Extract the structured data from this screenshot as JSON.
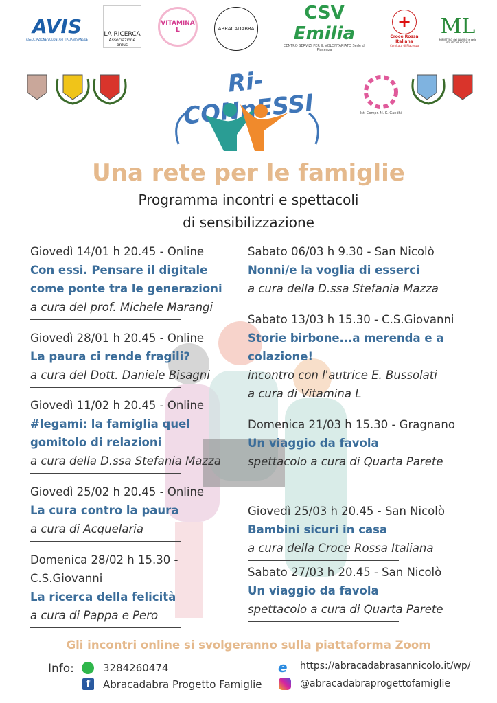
{
  "logos": {
    "avis": "AVIS",
    "avis_sub": "ASSOCIAZIONE VOLONTARI ITALIANI SANGUE",
    "ricerca": "LA RICERCA",
    "ricerca_sub": "Associazione onlus",
    "vitamina": "VITAMINA L",
    "abracadabra": "ABRACADABRA",
    "csv": "CSV",
    "csv_emilia": "Emilia",
    "csv_sub": "CENTRO SERVIZI PER IL VOLONTARIATO",
    "csv_sede": "Sede di Piacenza",
    "cri": "Croce Rossa Italiana",
    "cri_sub": "Comitato di Piacenza",
    "ministero": "ML",
    "ministero_sub": "MINISTERO del LAVORO e delle POLITICHE SOCIALI",
    "gandhi": "Ist. Compr. M. K. Gandhi",
    "project": "Ri-CONnESSI"
  },
  "header": {
    "title": "Una rete per le famiglie",
    "subtitle_1": "Programma incontri e spettacoli",
    "subtitle_2": "di sensibilizzazione"
  },
  "colors": {
    "title": "#e5b98c",
    "event_title": "#3b6d9a",
    "teal": "#2a9d94",
    "orange": "#f08a2c"
  },
  "left_events": [
    {
      "lines": [
        [
          "when",
          "Giovedì 14/01 h 20.45 - Online"
        ],
        [
          "title",
          "Con essi. Pensare il digitale"
        ],
        [
          "title",
          "come ponte tra le generazioni"
        ],
        [
          "who",
          "a cura del prof. Michele Marangi"
        ]
      ]
    },
    {
      "lines": [
        [
          "when",
          "Giovedì 28/01 h 20.45 - Online"
        ],
        [
          "title",
          "La paura ci rende fragili?"
        ],
        [
          "who",
          "a cura del Dott. Daniele Bisagni"
        ]
      ]
    },
    {
      "lines": [
        [
          "when",
          "Giovedì 11/02 h 20.45 - Online"
        ],
        [
          "title",
          "#legami: la famiglia quel"
        ],
        [
          "title",
          "gomitolo di relazioni"
        ],
        [
          "who",
          "a cura della D.ssa Stefania Mazza"
        ]
      ]
    },
    {
      "lines": [
        [
          "when",
          "Giovedì 25/02 h 20.45 - Online"
        ],
        [
          "title",
          "La cura contro la paura"
        ],
        [
          "who",
          "a cura di Acquelaria"
        ]
      ]
    },
    {
      "lines": [
        [
          "when",
          "Domenica 28/02 h 15.30 -"
        ],
        [
          "when",
          "C.S.Giovanni"
        ],
        [
          "title",
          "La ricerca della felicità"
        ],
        [
          "who",
          "a cura di Pappa e Pero"
        ]
      ]
    }
  ],
  "right_events": [
    {
      "lines": [
        [
          "when",
          "Sabato 06/03 h 9.30 - San Nicolò"
        ],
        [
          "title",
          "Nonni/e la voglia di esserci"
        ],
        [
          "who",
          "a cura della D.ssa Stefania Mazza"
        ]
      ]
    },
    {
      "lines": [
        [
          "when",
          "Sabato 13/03 h 15.30 - C.S.Giovanni"
        ],
        [
          "title",
          "Storie birbone...a merenda e a"
        ],
        [
          "title",
          "colazione!"
        ],
        [
          "who",
          "incontro con l'autrice E. Bussolati"
        ],
        [
          "who",
          "a cura di Vitamina L"
        ]
      ]
    },
    {
      "lines": [
        [
          "when",
          "Domenica 21/03 h 15.30 - Gragnano"
        ],
        [
          "title",
          "Un viaggio da favola"
        ],
        [
          "who",
          "spettacolo a cura di Quarta Parete"
        ]
      ]
    },
    {
      "lines": [
        [
          "when",
          "Giovedì 25/03 h 20.45 - San Nicolò"
        ],
        [
          "title",
          "Bambini sicuri in casa"
        ],
        [
          "who",
          "a cura della Croce Rossa Italiana"
        ]
      ]
    },
    {
      "lines": [
        [
          "when",
          "Sabato 27/03 h 20.45 - San Nicolò"
        ],
        [
          "title",
          "Un viaggio da favola"
        ],
        [
          "who",
          "spettacolo a cura di Quarta Parete"
        ]
      ]
    }
  ],
  "footer": {
    "note": "Gli incontri online si svolgeranno sulla piattaforma Zoom",
    "info_label": "Info:",
    "phone": "3284260474",
    "facebook": "Abracadabra Progetto Famiglie",
    "website": "https://abracadabrasannicolo.it/wp/",
    "instagram": "@abracadabraprogettofamiglie"
  }
}
